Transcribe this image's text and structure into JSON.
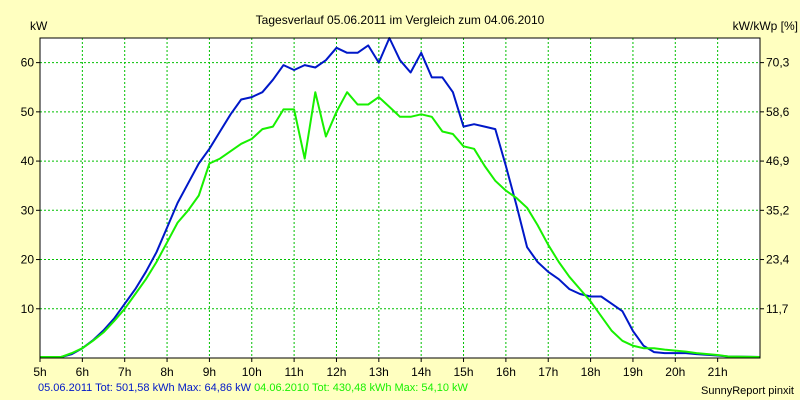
{
  "chart_data": {
    "type": "line",
    "title": "Tagesverlauf 05.06.2011 im Vergleich zum 04.06.2010",
    "ylabel_left": "kW",
    "ylabel_right": "kW/kWp [%]",
    "xlim": [
      5,
      22
    ],
    "ylim": [
      0,
      65
    ],
    "x_ticks": [
      {
        "x": 5,
        "label": "5h"
      },
      {
        "x": 6,
        "label": "6h"
      },
      {
        "x": 7,
        "label": "7h"
      },
      {
        "x": 8,
        "label": "8h"
      },
      {
        "x": 9,
        "label": "9h"
      },
      {
        "x": 10,
        "label": "10h"
      },
      {
        "x": 11,
        "label": "11h"
      },
      {
        "x": 12,
        "label": "12h"
      },
      {
        "x": 13,
        "label": "13h"
      },
      {
        "x": 14,
        "label": "14h"
      },
      {
        "x": 15,
        "label": "15h"
      },
      {
        "x": 16,
        "label": "16h"
      },
      {
        "x": 17,
        "label": "17h"
      },
      {
        "x": 18,
        "label": "18h"
      },
      {
        "x": 19,
        "label": "19h"
      },
      {
        "x": 20,
        "label": "20h"
      },
      {
        "x": 21,
        "label": "21h"
      }
    ],
    "y_ticks_left": [
      {
        "y": 10,
        "label": "10"
      },
      {
        "y": 20,
        "label": "20"
      },
      {
        "y": 30,
        "label": "30"
      },
      {
        "y": 40,
        "label": "40"
      },
      {
        "y": 50,
        "label": "50"
      },
      {
        "y": 60,
        "label": "60"
      }
    ],
    "y_ticks_right": [
      {
        "y": 10,
        "label": "11,7"
      },
      {
        "y": 20,
        "label": "23,4"
      },
      {
        "y": 30,
        "label": "35,2"
      },
      {
        "y": 40,
        "label": "46,9"
      },
      {
        "y": 50,
        "label": "58,6"
      },
      {
        "y": 60,
        "label": "70,3"
      }
    ],
    "grid": true,
    "series": [
      {
        "name": "05.06.2011",
        "color": "#0018c8",
        "points": [
          [
            5.0,
            0.2
          ],
          [
            5.5,
            0.2
          ],
          [
            5.75,
            0.8
          ],
          [
            6.0,
            2.0
          ],
          [
            6.25,
            3.6
          ],
          [
            6.5,
            5.6
          ],
          [
            6.75,
            8.0
          ],
          [
            7.0,
            11.0
          ],
          [
            7.25,
            14.0
          ],
          [
            7.5,
            17.5
          ],
          [
            7.75,
            21.5
          ],
          [
            8.0,
            26.5
          ],
          [
            8.25,
            31.5
          ],
          [
            8.5,
            35.5
          ],
          [
            8.75,
            39.5
          ],
          [
            9.0,
            42.5
          ],
          [
            9.25,
            46.0
          ],
          [
            9.5,
            49.5
          ],
          [
            9.75,
            52.5
          ],
          [
            10.0,
            53.0
          ],
          [
            10.25,
            54.0
          ],
          [
            10.5,
            56.5
          ],
          [
            10.75,
            59.5
          ],
          [
            11.0,
            58.5
          ],
          [
            11.25,
            59.5
          ],
          [
            11.5,
            59.0
          ],
          [
            11.75,
            60.5
          ],
          [
            12.0,
            63.0
          ],
          [
            12.25,
            62.0
          ],
          [
            12.5,
            62.0
          ],
          [
            12.75,
            63.5
          ],
          [
            13.0,
            60.0
          ],
          [
            13.25,
            65.0
          ],
          [
            13.5,
            60.5
          ],
          [
            13.75,
            58.0
          ],
          [
            14.0,
            62.0
          ],
          [
            14.25,
            57.0
          ],
          [
            14.5,
            57.0
          ],
          [
            14.75,
            54.0
          ],
          [
            15.0,
            47.0
          ],
          [
            15.25,
            47.5
          ],
          [
            15.5,
            47.0
          ],
          [
            15.75,
            46.5
          ],
          [
            16.0,
            39.0
          ],
          [
            16.25,
            31.0
          ],
          [
            16.5,
            22.5
          ],
          [
            16.75,
            19.5
          ],
          [
            17.0,
            17.5
          ],
          [
            17.25,
            16.0
          ],
          [
            17.5,
            14.0
          ],
          [
            17.75,
            13.0
          ],
          [
            18.0,
            12.5
          ],
          [
            18.25,
            12.5
          ],
          [
            18.5,
            11.0
          ],
          [
            18.75,
            9.5
          ],
          [
            19.0,
            5.5
          ],
          [
            19.25,
            2.5
          ],
          [
            19.5,
            1.2
          ],
          [
            19.75,
            1.0
          ],
          [
            20.0,
            1.0
          ],
          [
            20.25,
            1.0
          ],
          [
            20.5,
            0.8
          ],
          [
            21.0,
            0.5
          ],
          [
            21.25,
            0.3
          ],
          [
            22.0,
            0.2
          ]
        ]
      },
      {
        "name": "04.06.2010",
        "color": "#18f000",
        "points": [
          [
            5.0,
            0.2
          ],
          [
            5.5,
            0.2
          ],
          [
            5.75,
            1.0
          ],
          [
            6.0,
            2.0
          ],
          [
            6.25,
            3.5
          ],
          [
            6.5,
            5.2
          ],
          [
            6.75,
            7.5
          ],
          [
            7.0,
            10.0
          ],
          [
            7.25,
            13.0
          ],
          [
            7.5,
            16.0
          ],
          [
            7.75,
            19.5
          ],
          [
            8.0,
            23.5
          ],
          [
            8.25,
            27.5
          ],
          [
            8.5,
            30.0
          ],
          [
            8.75,
            33.0
          ],
          [
            9.0,
            39.5
          ],
          [
            9.25,
            40.5
          ],
          [
            9.5,
            42.0
          ],
          [
            9.75,
            43.5
          ],
          [
            10.0,
            44.5
          ],
          [
            10.25,
            46.5
          ],
          [
            10.5,
            47.0
          ],
          [
            10.75,
            50.5
          ],
          [
            11.0,
            50.5
          ],
          [
            11.25,
            40.5
          ],
          [
            11.5,
            54.0
          ],
          [
            11.75,
            45.0
          ],
          [
            12.0,
            50.0
          ],
          [
            12.25,
            54.0
          ],
          [
            12.5,
            51.5
          ],
          [
            12.75,
            51.5
          ],
          [
            13.0,
            53.0
          ],
          [
            13.25,
            51.0
          ],
          [
            13.5,
            49.0
          ],
          [
            13.75,
            49.0
          ],
          [
            14.0,
            49.5
          ],
          [
            14.25,
            49.0
          ],
          [
            14.5,
            46.0
          ],
          [
            14.75,
            45.5
          ],
          [
            15.0,
            43.0
          ],
          [
            15.25,
            42.5
          ],
          [
            15.5,
            39.0
          ],
          [
            15.75,
            36.0
          ],
          [
            16.0,
            34.0
          ],
          [
            16.25,
            32.5
          ],
          [
            16.5,
            30.5
          ],
          [
            16.75,
            27.0
          ],
          [
            17.0,
            23.0
          ],
          [
            17.25,
            19.5
          ],
          [
            17.5,
            16.5
          ],
          [
            17.75,
            14.0
          ],
          [
            18.0,
            11.5
          ],
          [
            18.25,
            8.5
          ],
          [
            18.5,
            5.5
          ],
          [
            18.75,
            3.5
          ],
          [
            19.0,
            2.5
          ],
          [
            19.25,
            2.0
          ],
          [
            19.5,
            2.0
          ],
          [
            19.75,
            1.7
          ],
          [
            20.0,
            1.5
          ],
          [
            20.25,
            1.3
          ],
          [
            20.5,
            1.0
          ],
          [
            21.0,
            0.6
          ],
          [
            21.25,
            0.3
          ],
          [
            22.0,
            0.2
          ]
        ]
      }
    ],
    "legend_footer": {
      "series1": {
        "name": "05.06.2011",
        "label": "05.06.2011 Tot: 501,58 kWh Max: 64,86 kW",
        "color": "#0018c8"
      },
      "series2": {
        "name": "04.06.2010",
        "label": "04.06.2010 Tot: 430,48 kWh Max: 54,10 kW",
        "color": "#18f000"
      }
    },
    "credit": "SunnyReport pinxit"
  }
}
